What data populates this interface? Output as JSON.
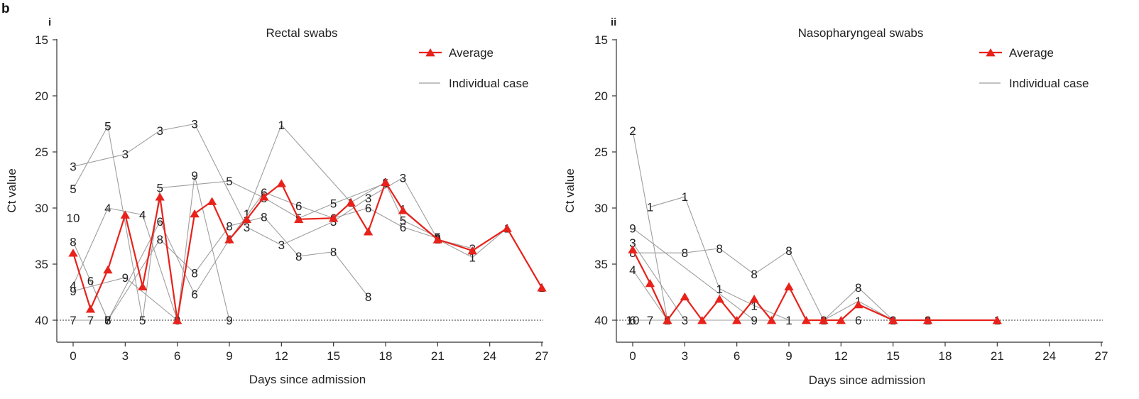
{
  "figure_label": "b",
  "colors": {
    "average": "#e8221b",
    "individual": "#9e9e9e",
    "axis": "#333333",
    "label_text": "#222222"
  },
  "chart_data": [
    {
      "type": "line",
      "panel": "i",
      "title": "Rectal swabs",
      "xlabel": "Days since admission",
      "ylabel": "Ct value",
      "xlim": [
        0,
        27
      ],
      "ylim": [
        42,
        15
      ],
      "y_inverted": true,
      "xticks": [
        0,
        3,
        6,
        9,
        12,
        15,
        18,
        21,
        24,
        27
      ],
      "yticks": [
        15,
        20,
        25,
        30,
        35,
        40
      ],
      "reference_line": 40,
      "legend": {
        "position": "top-right",
        "entries": [
          {
            "label": "Average",
            "marker": "triangle",
            "color": "#e8221b"
          },
          {
            "label": "Individual case",
            "marker": "none",
            "color": "#9e9e9e"
          }
        ]
      },
      "average": {
        "name": "Average",
        "x": [
          0,
          1,
          2,
          3,
          4,
          5,
          6,
          7,
          8,
          9,
          10,
          11,
          12,
          13,
          15,
          16,
          17,
          18,
          19,
          21,
          23,
          25,
          27
        ],
        "y": [
          34,
          39,
          35.5,
          30.6,
          37,
          29,
          40,
          30.5,
          29.4,
          32.8,
          31,
          29,
          27.8,
          31,
          30.9,
          29.5,
          32.1,
          27.7,
          30.2,
          32.8,
          33.8,
          31.8,
          37.1
        ]
      },
      "cases": [
        {
          "label": "1",
          "points": [
            [
              10,
              30.5
            ],
            [
              12,
              22.6
            ],
            [
              16,
              29.5
            ],
            [
              18,
              27.7
            ],
            [
              19,
              30.1
            ],
            [
              21,
              32.8
            ],
            [
              23,
              34.4
            ],
            [
              25,
              31.8
            ],
            [
              27,
              37.1
            ]
          ]
        },
        {
          "label": "3",
          "points": [
            [
              0,
              26.3
            ],
            [
              3,
              25.2
            ],
            [
              5,
              23.1
            ],
            [
              7,
              22.5
            ],
            [
              10,
              31.7
            ],
            [
              12,
              33.3
            ],
            [
              15,
              31.2
            ],
            [
              17,
              29.1
            ],
            [
              19,
              27.3
            ],
            [
              21,
              32.8
            ],
            [
              23,
              33.6
            ]
          ]
        },
        {
          "label": "4",
          "points": [
            [
              0,
              36.9
            ],
            [
              2,
              30
            ],
            [
              4,
              30.6
            ],
            [
              6,
              40
            ]
          ]
        },
        {
          "label": "5",
          "points": [
            [
              0,
              28.3
            ],
            [
              2,
              22.7
            ],
            [
              4,
              40
            ],
            [
              5,
              28.2
            ],
            [
              9,
              27.6
            ],
            [
              11,
              29.1
            ],
            [
              13,
              30.9
            ],
            [
              15,
              29.6
            ],
            [
              18,
              27.8
            ],
            [
              19,
              31.1
            ],
            [
              21,
              32.6
            ]
          ]
        },
        {
          "label": "6",
          "points": [
            [
              1,
              36.5
            ],
            [
              2,
              40
            ],
            [
              5,
              31.2
            ],
            [
              7,
              37.7
            ],
            [
              9,
              32.8
            ],
            [
              11,
              28.6
            ],
            [
              13,
              29.8
            ],
            [
              15,
              30.9
            ],
            [
              17,
              30
            ],
            [
              19,
              31.7
            ],
            [
              21,
              32.7
            ]
          ]
        },
        {
          "label": "7",
          "points": [
            [
              0,
              40
            ],
            [
              1,
              40
            ],
            [
              2,
              40
            ]
          ]
        },
        {
          "label": "8",
          "points": [
            [
              0,
              33
            ],
            [
              2,
              40
            ],
            [
              5,
              32.8
            ],
            [
              7,
              35.8
            ],
            [
              9,
              31.6
            ],
            [
              11,
              30.8
            ],
            [
              13,
              34.3
            ],
            [
              15,
              33.9
            ],
            [
              17,
              37.9
            ]
          ]
        },
        {
          "label": "9",
          "points": [
            [
              0,
              37.4
            ],
            [
              3,
              36.2
            ],
            [
              6,
              40
            ],
            [
              7,
              27.1
            ],
            [
              9,
              40
            ]
          ]
        },
        {
          "label": "10",
          "points": [
            [
              0,
              30.9
            ]
          ]
        }
      ]
    },
    {
      "type": "line",
      "panel": "ii",
      "title": "Nasopharyngeal swabs",
      "xlabel": "Days since admission",
      "ylabel": "Ct value",
      "xlim": [
        0,
        27
      ],
      "ylim": [
        42,
        15
      ],
      "y_inverted": true,
      "xticks": [
        0,
        3,
        6,
        9,
        12,
        15,
        18,
        21,
        24,
        27
      ],
      "yticks": [
        15,
        20,
        25,
        30,
        35,
        40
      ],
      "reference_line": 40,
      "legend": {
        "position": "top-right",
        "entries": [
          {
            "label": "Average",
            "marker": "triangle",
            "color": "#e8221b"
          },
          {
            "label": "Individual case",
            "marker": "none",
            "color": "#9e9e9e"
          }
        ]
      },
      "average": {
        "name": "Average",
        "x": [
          0,
          1,
          2,
          3,
          4,
          5,
          6,
          7,
          8,
          9,
          10,
          11,
          12,
          13,
          15,
          17,
          21
        ],
        "y": [
          33.7,
          36.7,
          40,
          37.9,
          40,
          38.1,
          40,
          38.1,
          40,
          37,
          40,
          40,
          40,
          38.6,
          40,
          40,
          40
        ]
      },
      "cases": [
        {
          "label": "1",
          "points": [
            [
              1,
              29.9
            ],
            [
              3,
              29
            ],
            [
              5,
              37.2
            ],
            [
              7,
              38.7
            ],
            [
              9,
              40
            ],
            [
              11,
              40
            ],
            [
              13,
              38.3
            ],
            [
              15,
              40
            ],
            [
              17,
              40
            ],
            [
              21,
              40
            ]
          ]
        },
        {
          "label": "2",
          "points": [
            [
              0,
              23.1
            ],
            [
              2,
              40
            ]
          ]
        },
        {
          "label": "3",
          "points": [
            [
              0,
              33.1
            ],
            [
              3,
              40
            ]
          ]
        },
        {
          "label": "4",
          "points": [
            [
              0,
              35.5
            ],
            [
              2,
              40
            ]
          ]
        },
        {
          "label": "6",
          "points": [
            [
              0,
              40
            ],
            [
              2,
              40
            ],
            [
              13,
              40
            ]
          ]
        },
        {
          "label": "7",
          "points": [
            [
              1,
              40
            ]
          ]
        },
        {
          "label": "8",
          "points": [
            [
              0,
              34
            ],
            [
              3,
              34
            ],
            [
              5,
              33.6
            ],
            [
              7,
              35.9
            ],
            [
              9,
              33.8
            ],
            [
              11,
              40
            ],
            [
              13,
              37.1
            ],
            [
              15,
              40
            ],
            [
              17,
              40
            ]
          ]
        },
        {
          "label": "9",
          "points": [
            [
              0,
              31.8
            ],
            [
              7,
              40
            ]
          ]
        },
        {
          "label": "10",
          "points": [
            [
              0,
              40
            ]
          ]
        }
      ]
    }
  ]
}
